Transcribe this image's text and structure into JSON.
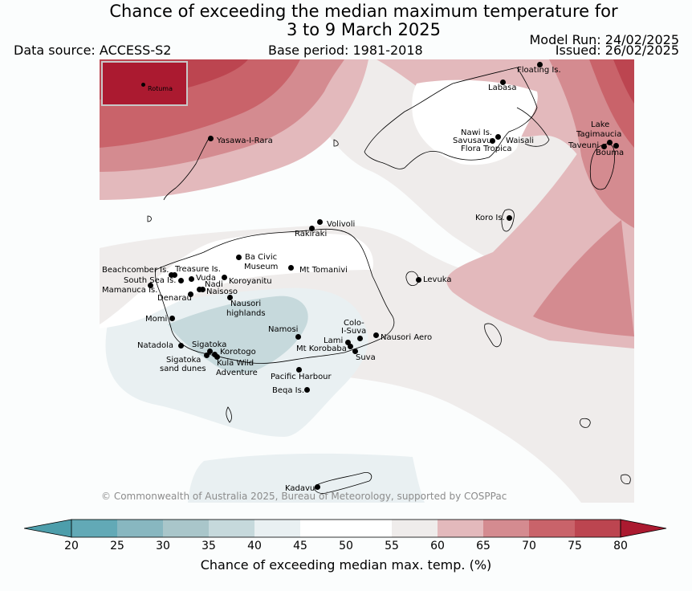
{
  "header": {
    "title_line1": "Chance of exceeding the median maximum temperature for",
    "title_line2": "3 to 9 March 2025",
    "data_source": "Data source: ACCESS-S2",
    "base_period": "Base period: 1981-2018",
    "model_run": "Model Run: 24/02/2025",
    "issued": "Issued: 26/02/2025"
  },
  "map": {
    "inset_label": "Rotuma",
    "copyright": "© Commonwealth of Australia 2025, Bureau of Meteorology, supported by COSPPac",
    "places": {
      "floating_is": "Floating Is.",
      "labasa": "Labasa",
      "nawi_is": "Nawi Is.",
      "savusavu": "Savusavu",
      "waisali": "Waisali",
      "flora_tropica": "Flora Tropica",
      "lake_tagimaucia_1": "Lake",
      "lake_tagimaucia_2": "Tagimaucia",
      "taveuni": "Taveuni",
      "bouma": "Bouma",
      "yasawa": "Yasawa-I-Rara",
      "volivoli": "Volivoli",
      "rakiraki": "Rakiraki",
      "koro": "Koro Is.",
      "ba_civic_1": "Ba Civic",
      "ba_civic_2": "Museum",
      "mt_tomanivi": "Mt Tomanivi",
      "levuka": "Levuka",
      "beachcomber": "Beachcomber Is.",
      "treasure": "Treasure Is.",
      "south_sea": "South Sea Is.",
      "vuda": "Vuda",
      "koroyanitu": "Koroyanitu",
      "nadi": "Nadi",
      "mamanuca": "Mamanuca Is.",
      "denarau": "Denarau",
      "naisoso": "Naisoso",
      "nausori_highlands_1": "Nausori",
      "nausori_highlands_2": "highlands",
      "momi": "Momi",
      "namosi": "Namosi",
      "colo_isuva_1": "Colo-",
      "colo_isuva_2": "I-Suva",
      "lami": "Lami",
      "nausori_aero": "Nausori Aero",
      "natadola": "Natadola",
      "sigatoka": "Sigatoka",
      "korotogo": "Korotogo",
      "mt_korobaba": "Mt Korobaba",
      "suva": "Suva",
      "sigatoka_dunes_1": "Sigatoka",
      "sigatoka_dunes_2": "sand dunes",
      "kula_1": "Kula Wild",
      "kula_2": "Adventure",
      "pacific_harbour": "Pacific Harbour",
      "beqa": "Beqa Is.",
      "kadavu": "Kadavu"
    }
  },
  "colorbar": {
    "label": "Chance of exceeding median max. temp. (%)",
    "ticks": [
      "20",
      "25",
      "30",
      "35",
      "40",
      "45",
      "50",
      "55",
      "60",
      "65",
      "70",
      "75",
      "80"
    ],
    "colors": [
      "#62a9b6",
      "#88b7c0",
      "#a9c6ca",
      "#c6d9dc",
      "#e9f0f2",
      "#ffffff",
      "#ffffff",
      "#efeceb",
      "#e3b9bc",
      "#d48b90",
      "#c9636a",
      "#bc4550"
    ],
    "under_color": "#4d9eab",
    "over_color": "#ab1a30"
  }
}
